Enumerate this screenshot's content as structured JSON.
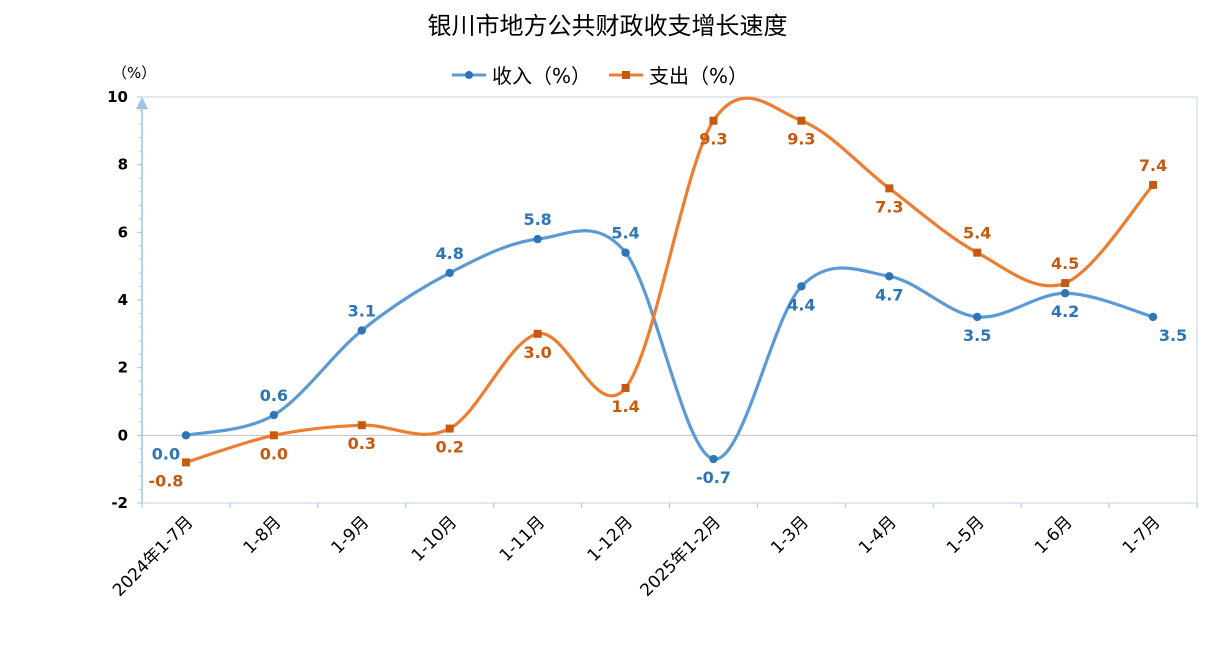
{
  "chart_data": {
    "type": "line",
    "title": "银川市地方公共财政收支增长速度",
    "ylabel": "（%）",
    "categories": [
      "2024年1-7月",
      "1-8月",
      "1-9月",
      "1-10月",
      "1-11月",
      "1-12月",
      "2025年1-2月",
      "1-3月",
      "1-4月",
      "1-5月",
      "1-6月",
      "1-7月"
    ],
    "ylim": [
      -2,
      10
    ],
    "yticks": [
      "-2",
      "0",
      "2",
      "4",
      "6",
      "8",
      "10"
    ],
    "grid": false,
    "legend_position": "top",
    "series": [
      {
        "name": "收入（%）",
        "color": "#2E75B6",
        "marker": "circle",
        "values": [
          0.0,
          0.6,
          3.1,
          4.8,
          5.8,
          5.4,
          -0.7,
          4.4,
          4.7,
          3.5,
          4.2,
          3.5
        ],
        "labels": [
          "0.0",
          "0.6",
          "3.1",
          "4.8",
          "5.8",
          "5.4",
          "-0.7",
          "4.4",
          "4.7",
          "3.5",
          "4.2",
          "3.5"
        ]
      },
      {
        "name": "支出（%）",
        "color": "#C55A11",
        "marker": "square",
        "values": [
          -0.8,
          0.0,
          0.3,
          0.2,
          3.0,
          1.4,
          9.3,
          9.3,
          7.3,
          5.4,
          4.5,
          7.4
        ],
        "labels": [
          "-0.8",
          "0.0",
          "0.3",
          "0.2",
          "3.0",
          "1.4",
          "9.3",
          "9.3",
          "7.3",
          "5.4",
          "4.5",
          "7.4"
        ]
      }
    ]
  },
  "styles": {
    "line_colors": [
      "#5B9BD5",
      "#ED7D31"
    ],
    "axis_color": "#9DC3E6"
  }
}
